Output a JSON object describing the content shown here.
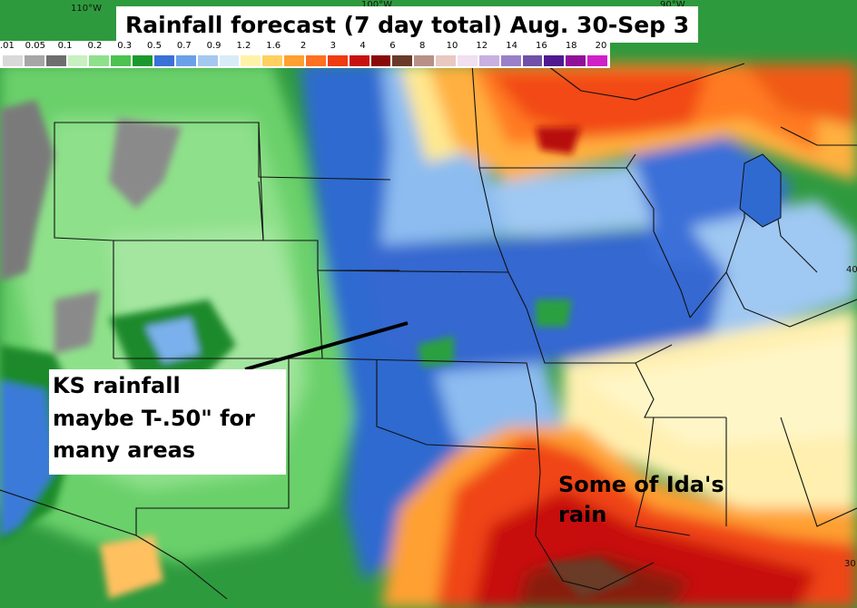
{
  "title": "Rainfall forecast (7 day total) Aug. 30-Sep 3",
  "legend": {
    "labels": [
      ".01",
      "0.05",
      "0.1",
      "0.2",
      "0.3",
      "0.5",
      "0.7",
      "0.9",
      "1.2",
      "1.6",
      "2",
      "3",
      "4",
      "6",
      "8",
      "10",
      "12",
      "14",
      "16",
      "18",
      "20"
    ],
    "colors": [
      "#d9d9d9",
      "#a6a6a6",
      "#6e6e6e",
      "#c8f0c0",
      "#8ee08a",
      "#4cc24f",
      "#1a9a2e",
      "#3a70d8",
      "#6aa0e8",
      "#a4c8f0",
      "#d8ecf8",
      "#fff2a8",
      "#ffd060",
      "#ffa030",
      "#ff7020",
      "#f03a10",
      "#c81010",
      "#8a0a0a",
      "#6a3a28",
      "#b89088",
      "#e8c8c0",
      "#f0e0f0",
      "#c8b0e0",
      "#9a80c8",
      "#7050a8",
      "#501890",
      "#90109a",
      "#d020c8"
    ]
  },
  "longitude_labels": [
    "110°W",
    "100°W",
    "90°W"
  ],
  "latitude_labels": [
    "40",
    "30"
  ],
  "annotations": {
    "kansas_lines": [
      "KS rainfall",
      "maybe T-.50\" for",
      "many areas"
    ],
    "ida_lines": [
      "Some of Ida's",
      "rain"
    ]
  }
}
